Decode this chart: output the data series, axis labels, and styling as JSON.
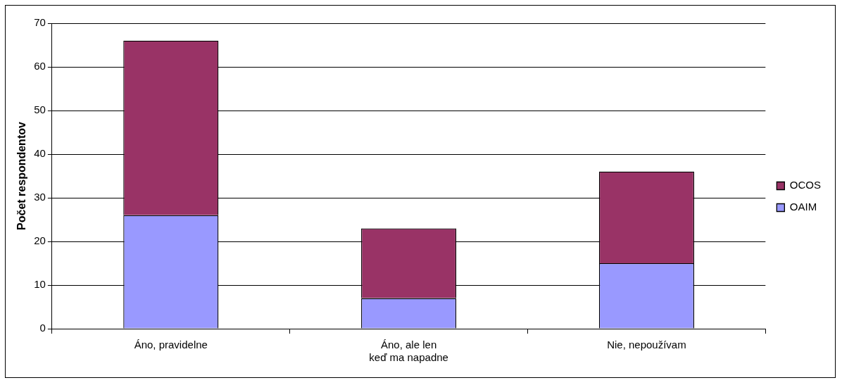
{
  "chart_data": {
    "type": "bar",
    "stacked": true,
    "ylabel": "Počet respondentov",
    "categories": [
      "Áno, pravidelne",
      "Áno, ale len\nkeď ma napadne",
      "Nie, nepoužívam"
    ],
    "series": [
      {
        "name": "OAIM",
        "color": "#9999ff",
        "values": [
          26,
          7,
          15
        ]
      },
      {
        "name": "OCOS",
        "color": "#993366",
        "values": [
          40,
          16,
          21
        ]
      }
    ],
    "ylim": [
      0,
      70
    ],
    "yticks": [
      0,
      10,
      20,
      30,
      40,
      50,
      60,
      70
    ],
    "grid": "y",
    "legend": "right"
  }
}
